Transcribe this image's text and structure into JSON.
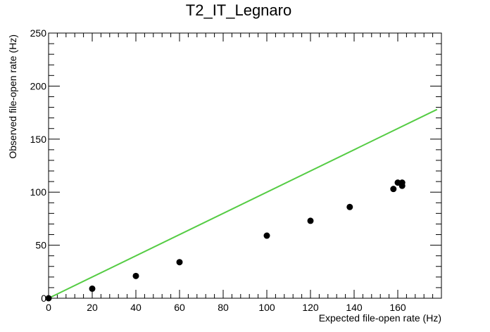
{
  "chart_data": {
    "type": "scatter",
    "title": "T2_IT_Legnaro",
    "xlabel": "Expected file-open rate (Hz)",
    "ylabel": "Observed file-open rate (Hz)",
    "xlim": [
      0,
      180
    ],
    "ylim": [
      0,
      250
    ],
    "x_ticks": [
      0,
      20,
      40,
      60,
      80,
      100,
      120,
      140,
      160
    ],
    "y_ticks": [
      0,
      50,
      100,
      150,
      200,
      250
    ],
    "grid": false,
    "legend": "none",
    "series": [
      {
        "color": "#000000",
        "points": [
          {
            "x": 0,
            "y": 0
          },
          {
            "x": 20,
            "y": 9
          },
          {
            "x": 40,
            "y": 21
          },
          {
            "x": 60,
            "y": 34
          },
          {
            "x": 100,
            "y": 59
          },
          {
            "x": 120,
            "y": 73
          },
          {
            "x": 138,
            "y": 86
          },
          {
            "x": 158,
            "y": 103
          },
          {
            "x": 160,
            "y": 109
          },
          {
            "x": 162,
            "y": 109
          },
          {
            "x": 162,
            "y": 106
          }
        ]
      }
    ],
    "reference_line": {
      "color": "#55cc44",
      "from": {
        "x": 0,
        "y": 0
      },
      "to": {
        "x": 178,
        "y": 178
      }
    }
  }
}
